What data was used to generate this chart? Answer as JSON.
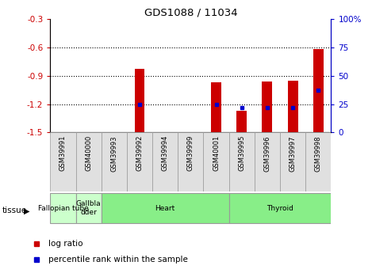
{
  "title": "GDS1088 / 11034",
  "samples": [
    "GSM39991",
    "GSM40000",
    "GSM39993",
    "GSM39992",
    "GSM39994",
    "GSM39999",
    "GSM40001",
    "GSM39995",
    "GSM39996",
    "GSM39997",
    "GSM39998"
  ],
  "log_ratios": [
    null,
    null,
    null,
    -0.83,
    null,
    null,
    -0.97,
    -1.27,
    -0.96,
    -0.95,
    -0.62
  ],
  "percentile_ranks": [
    null,
    null,
    null,
    25,
    null,
    null,
    25,
    22,
    22,
    22,
    37
  ],
  "ylim_left": [
    -1.5,
    -0.3
  ],
  "ylim_right": [
    0,
    100
  ],
  "yticks_left": [
    -1.5,
    -1.2,
    -0.9,
    -0.6,
    -0.3
  ],
  "yticks_right": [
    0,
    25,
    50,
    75,
    100
  ],
  "bar_color": "#cc0000",
  "dot_color": "#0000cc",
  "tissue_groups": [
    {
      "label": "Fallopian tube",
      "start": 0,
      "end": 1,
      "color": "#ccffcc"
    },
    {
      "label": "Gallbla\ndder",
      "start": 1,
      "end": 2,
      "color": "#ccffcc"
    },
    {
      "label": "Heart",
      "start": 2,
      "end": 7,
      "color": "#88ee88"
    },
    {
      "label": "Thyroid",
      "start": 7,
      "end": 11,
      "color": "#88ee88"
    }
  ],
  "background_color": "#ffffff",
  "tick_label_color_left": "#cc0000",
  "tick_label_color_right": "#0000cc",
  "grid_yticks": [
    -1.2,
    -0.9,
    -0.6
  ],
  "bar_width": 0.4,
  "legend_items": [
    {
      "color": "#cc0000",
      "label": "log ratio"
    },
    {
      "color": "#0000cc",
      "label": "percentile rank within the sample"
    }
  ]
}
